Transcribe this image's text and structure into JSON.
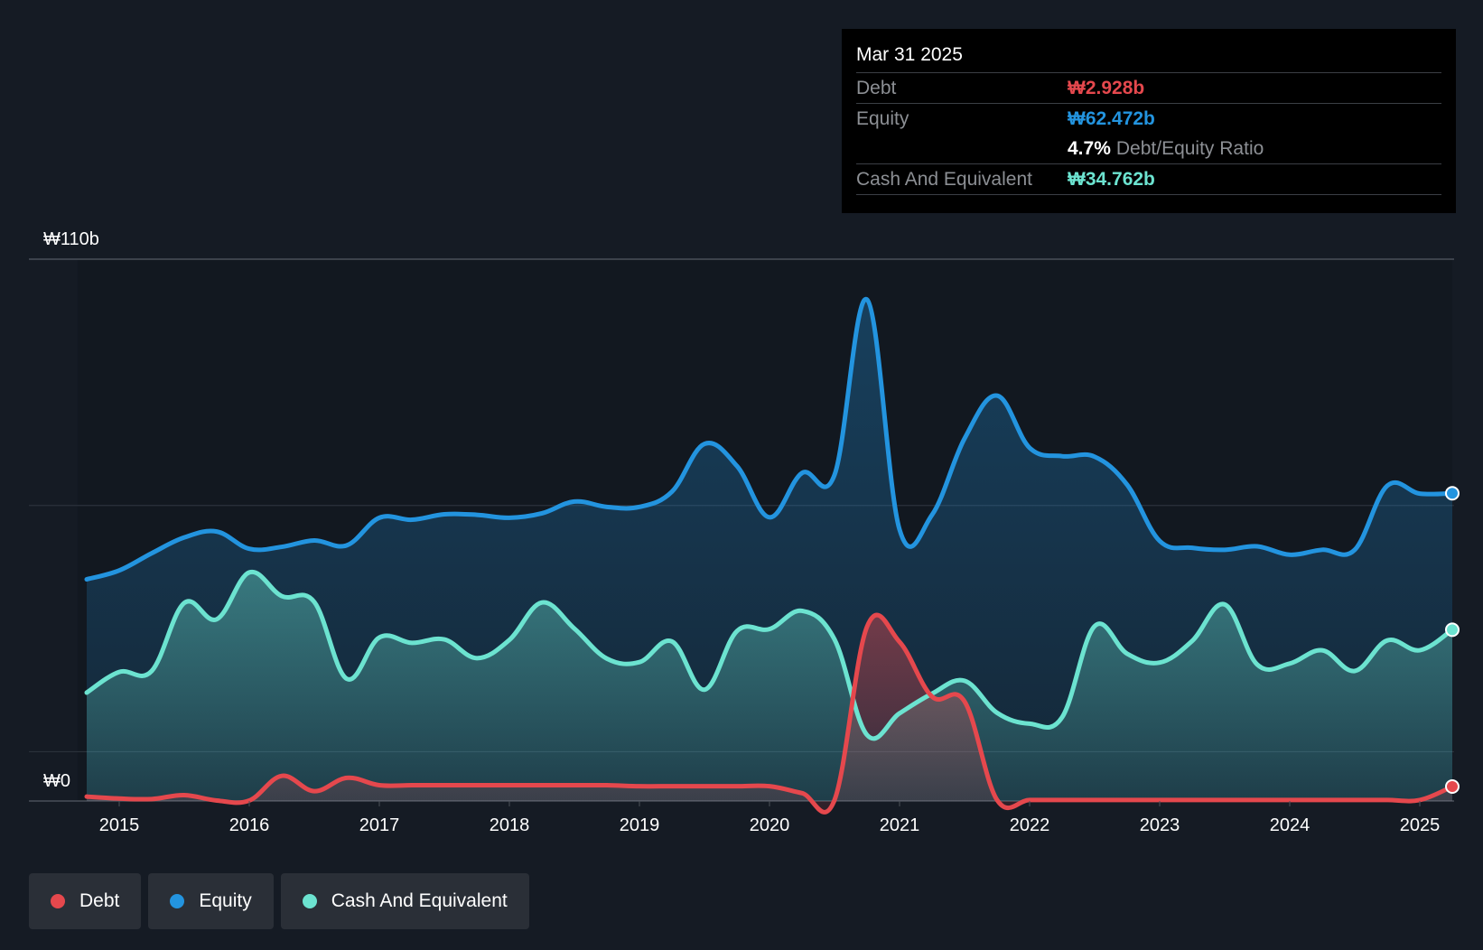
{
  "colors": {
    "debt": "#e5484d",
    "equity": "#2394df",
    "cash": "#6ce3d0",
    "background": "#151b24",
    "plot_background": "#121820"
  },
  "tooltip": {
    "date": "Mar 31 2025",
    "debt_label": "Debt",
    "debt_value": "₩2.928b",
    "equity_label": "Equity",
    "equity_value": "₩62.472b",
    "ratio_value": "4.7%",
    "ratio_label": "Debt/Equity Ratio",
    "cash_label": "Cash And Equivalent",
    "cash_value": "₩34.762b"
  },
  "legend": {
    "debt": "Debt",
    "equity": "Equity",
    "cash": "Cash And Equivalent"
  },
  "chart_data": {
    "type": "area",
    "y_top_label": "₩110b",
    "y_bottom_label": "₩0",
    "ylim": [
      0,
      110
    ],
    "y_unit": "₩b",
    "xlim": [
      2014.68,
      2025.25
    ],
    "x_ticks": [
      "2015",
      "2016",
      "2017",
      "2018",
      "2019",
      "2020",
      "2021",
      "2022",
      "2023",
      "2024",
      "2025"
    ],
    "x_tick_values": [
      2015,
      2016,
      2017,
      2018,
      2019,
      2020,
      2021,
      2022,
      2023,
      2024,
      2025
    ],
    "highlight_band": [
      2014.68,
      2025.25
    ],
    "series": [
      {
        "name": "Equity",
        "key": "equity",
        "x": [
          2014.75,
          2015.0,
          2015.25,
          2015.5,
          2015.75,
          2016.0,
          2016.25,
          2016.5,
          2016.75,
          2017.0,
          2017.25,
          2017.5,
          2017.75,
          2018.0,
          2018.25,
          2018.5,
          2018.75,
          2019.0,
          2019.25,
          2019.5,
          2019.75,
          2020.0,
          2020.25,
          2020.5,
          2020.75,
          2021.0,
          2021.25,
          2021.5,
          2021.75,
          2022.0,
          2022.25,
          2022.5,
          2022.75,
          2023.0,
          2023.25,
          2023.5,
          2023.75,
          2024.0,
          2024.25,
          2024.5,
          2024.75,
          2025.0,
          2025.25
        ],
        "values": [
          45.0,
          46.8,
          50.3,
          53.5,
          54.7,
          51.2,
          51.6,
          52.9,
          51.9,
          57.5,
          57.1,
          58.2,
          58.1,
          57.5,
          58.4,
          60.8,
          59.7,
          59.7,
          62.8,
          72.5,
          68.0,
          57.6,
          66.6,
          66.2,
          101.8,
          55.1,
          58.1,
          73.6,
          82.3,
          71.7,
          70.0,
          69.9,
          64.2,
          52.8,
          51.4,
          51.0,
          51.7,
          50.0,
          51.0,
          51.0,
          64.0,
          62.4,
          62.47
        ]
      },
      {
        "name": "Cash And Equivalent",
        "key": "cash",
        "x": [
          2014.75,
          2015.0,
          2015.25,
          2015.5,
          2015.75,
          2016.0,
          2016.25,
          2016.5,
          2016.75,
          2017.0,
          2017.25,
          2017.5,
          2017.75,
          2018.0,
          2018.25,
          2018.5,
          2018.75,
          2019.0,
          2019.25,
          2019.5,
          2019.75,
          2020.0,
          2020.25,
          2020.5,
          2020.75,
          2021.0,
          2021.25,
          2021.5,
          2021.75,
          2022.0,
          2022.25,
          2022.5,
          2022.75,
          2023.0,
          2023.25,
          2023.5,
          2023.75,
          2024.0,
          2024.25,
          2024.5,
          2024.75,
          2025.0,
          2025.25
        ],
        "values": [
          22.0,
          26.2,
          26.4,
          40.2,
          36.9,
          46.4,
          41.6,
          40.4,
          24.8,
          33.2,
          32.1,
          32.8,
          29.0,
          32.7,
          40.3,
          35.0,
          28.9,
          28.2,
          32.4,
          22.6,
          34.5,
          34.9,
          38.6,
          32.8,
          13.4,
          17.8,
          21.8,
          24.4,
          17.9,
          15.7,
          17.0,
          35.5,
          29.9,
          28.1,
          32.5,
          39.9,
          27.7,
          27.9,
          30.6,
          26.4,
          32.6,
          30.6,
          34.76
        ]
      },
      {
        "name": "Debt",
        "key": "debt",
        "x": [
          2014.75,
          2015.0,
          2015.25,
          2015.5,
          2015.75,
          2016.0,
          2016.25,
          2016.5,
          2016.75,
          2017.0,
          2017.25,
          2017.5,
          2017.75,
          2018.0,
          2018.25,
          2018.5,
          2018.75,
          2019.0,
          2019.25,
          2019.5,
          2019.75,
          2020.0,
          2020.25,
          2020.5,
          2020.75,
          2021.0,
          2021.25,
          2021.5,
          2021.75,
          2022.0,
          2022.25,
          2022.5,
          2022.75,
          2023.0,
          2023.25,
          2023.5,
          2023.75,
          2024.0,
          2024.25,
          2024.5,
          2024.75,
          2025.0,
          2025.25
        ],
        "values": [
          0.9,
          0.5,
          0.4,
          1.2,
          0.1,
          0.1,
          5.1,
          2.0,
          4.7,
          3.2,
          3.2,
          3.2,
          3.2,
          3.2,
          3.2,
          3.2,
          3.2,
          3.0,
          3.0,
          3.0,
          3.0,
          3.0,
          1.6,
          0.2,
          35.4,
          32.3,
          21.2,
          20.2,
          0.2,
          0.2,
          0.2,
          0.2,
          0.2,
          0.2,
          0.2,
          0.2,
          0.2,
          0.2,
          0.2,
          0.2,
          0.2,
          0.2,
          2.93
        ]
      }
    ]
  }
}
